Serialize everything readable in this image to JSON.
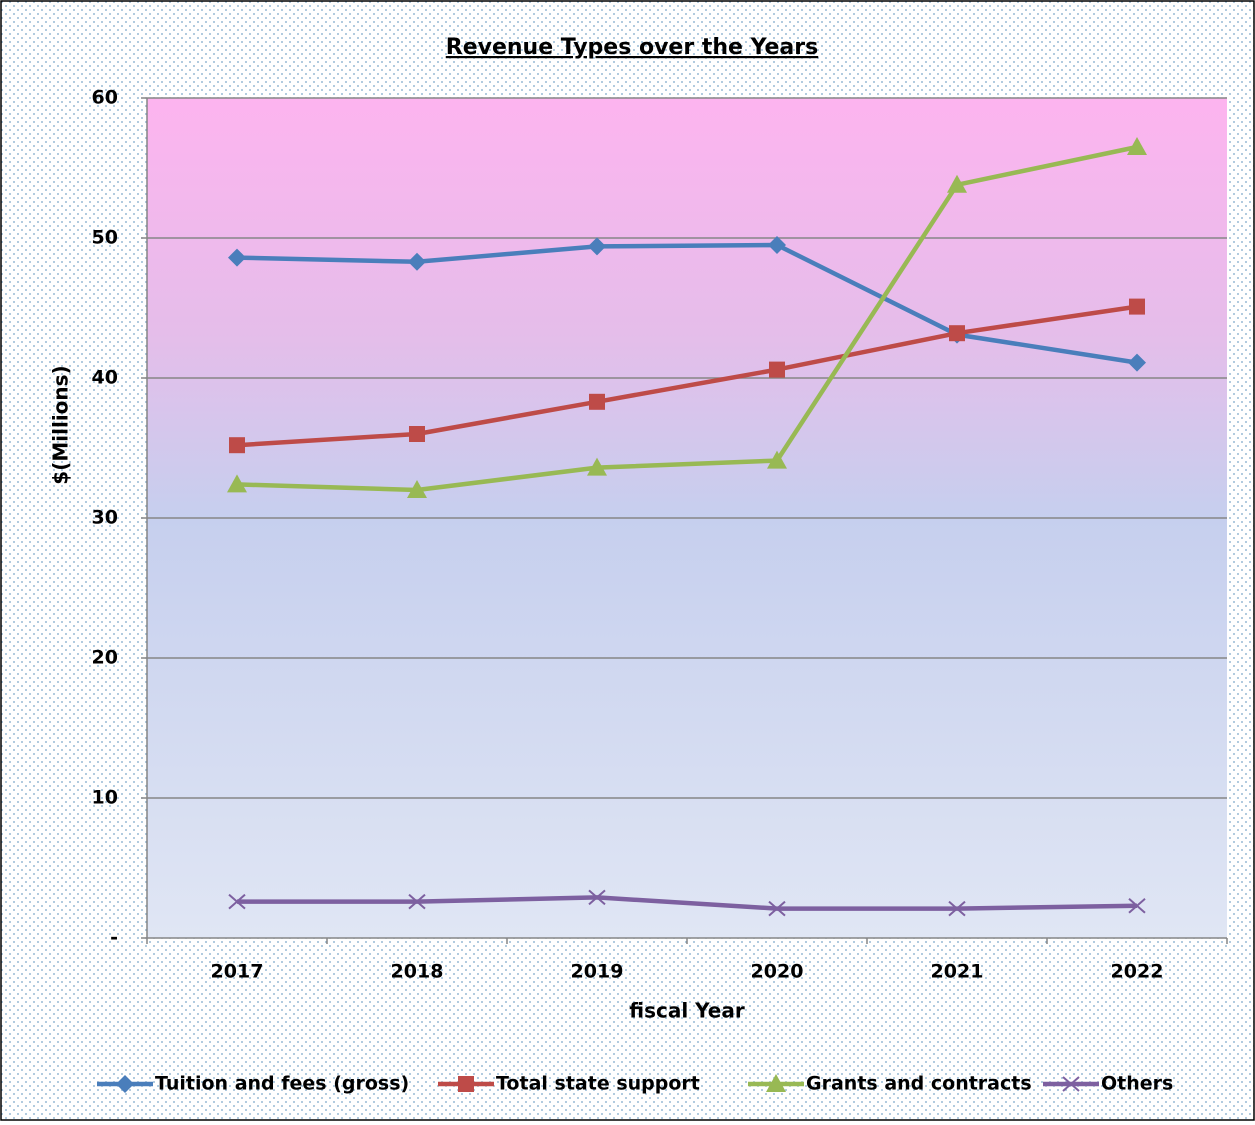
{
  "chart_data": {
    "type": "line",
    "title": "Revenue Types over the Years",
    "x_label": "fiscal Year",
    "y_label": "$(Millions)",
    "categories": [
      "2017",
      "2018",
      "2019",
      "2020",
      "2021",
      "2022"
    ],
    "series": [
      {
        "name": "Tuition and fees (gross)",
        "color": "#4a7ebb",
        "marker": "diamond",
        "values": [
          48.6,
          48.3,
          49.4,
          49.5,
          43.1,
          41.1
        ]
      },
      {
        "name": "Total state support",
        "color": "#be4b48",
        "marker": "square",
        "values": [
          35.2,
          36.0,
          38.3,
          40.6,
          43.2,
          45.1
        ]
      },
      {
        "name": "Grants and contracts",
        "color": "#98b954",
        "marker": "triangle",
        "values": [
          32.4,
          32.0,
          33.6,
          34.1,
          53.8,
          56.5
        ]
      },
      {
        "name": "Others",
        "color": "#7d60a0",
        "marker": "x",
        "values": [
          2.6,
          2.6,
          2.9,
          2.1,
          2.1,
          2.3
        ]
      }
    ],
    "ylim": [
      0,
      60
    ],
    "yticks": [
      {
        "value": 0,
        "label": "-"
      },
      10,
      20,
      30,
      40,
      50,
      60
    ],
    "grid": true,
    "legend": "bottom"
  }
}
